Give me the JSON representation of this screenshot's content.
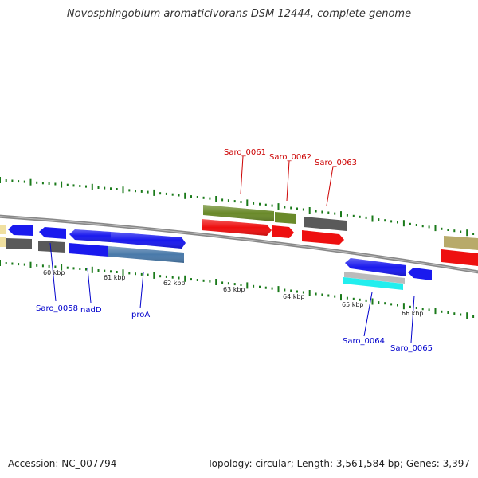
{
  "title": "Novosphingobium aromaticivorans DSM 12444, complete genome",
  "footer": {
    "accession": "Accession: NC_007794",
    "summary": "Topology: circular; Length: 3,561,584 bp; Genes: 3,397"
  },
  "scale_ticks": [
    "60 kbp",
    "61 kbp",
    "62 kbp",
    "63 kbp",
    "64 kbp",
    "65 kbp",
    "66 kbp"
  ],
  "top_labels": [
    "Saro_0061",
    "Saro_0062",
    "Saro_0063"
  ],
  "bottom_labels": [
    "Saro_0058",
    "nadD",
    "proA",
    "Saro_0064",
    "Saro_0065"
  ],
  "colors": {
    "gene_blue": "#1a1aee",
    "gene_red": "#ee1010",
    "gene_green": "#6a8a2a",
    "gene_grey": "#5a5a5a",
    "gene_steel": "#4a7aaa",
    "gene_tan": "#b8aa6a",
    "gene_yellow": "#f0e0a0",
    "gene_cyan": "#22eeee",
    "gene_lightgrey": "#bbbbbb",
    "label_red": "#cc0000",
    "label_blue": "#0000cc",
    "tick_green": "#1a7a1a",
    "backbone": "#888888"
  }
}
